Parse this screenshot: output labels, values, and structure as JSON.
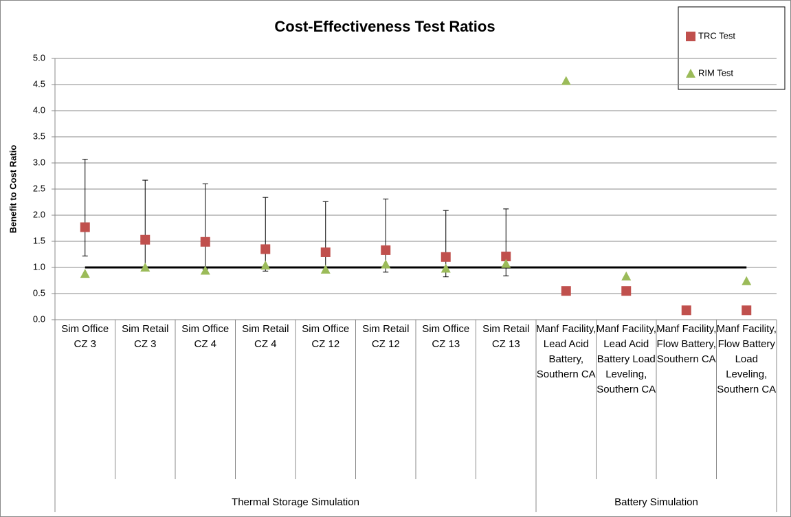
{
  "chart_data": {
    "type": "scatter",
    "title": "Cost-Effectiveness Test Ratios",
    "y_label": "Benefit to Cost Ratio",
    "categories": [
      "Sim Office CZ 3",
      "Sim Retail CZ 3",
      "Sim Office CZ 4",
      "Sim Retail CZ 4",
      "Sim Office CZ 12",
      "Sim Retail CZ 12",
      "Sim Office CZ 13",
      "Sim Retail CZ 13",
      "Manf Facility, Lead Acid Battery, Southern CA",
      "Manf Facility, Lead Acid Battery Load Leveling, Southern CA",
      "Manf Facility, Flow Battery, Southern CA",
      "Manf Facility, Flow Battery Load Leveling, Southern CA"
    ],
    "groups": [
      {
        "name": "Thermal Storage Simulation",
        "start": 0,
        "end": 7
      },
      {
        "name": "Battery Simulation",
        "start": 8,
        "end": 11
      }
    ],
    "series": [
      {
        "name": "TRC Test",
        "color": "#c0504d",
        "marker": "square",
        "values": [
          1.77,
          1.53,
          1.49,
          1.35,
          1.29,
          1.33,
          1.2,
          1.21,
          0.55,
          0.55,
          0.18,
          0.18
        ],
        "error_plus": [
          1.3,
          1.14,
          1.11,
          0.99,
          0.97,
          0.98,
          0.89,
          0.91,
          null,
          null,
          null,
          null
        ],
        "error_minus": [
          0.55,
          0.53,
          0.52,
          0.42,
          0.34,
          0.42,
          0.38,
          0.37,
          null,
          null,
          null,
          null
        ]
      },
      {
        "name": "RIM Test",
        "color": "#9bbb59",
        "marker": "triangle",
        "values": [
          0.88,
          1.0,
          0.94,
          1.04,
          0.96,
          1.06,
          0.98,
          1.07,
          4.57,
          0.83,
          null,
          0.74
        ]
      }
    ],
    "reference_line": 1.0,
    "ylim": [
      0,
      5
    ],
    "yticks": [
      {
        "value": 0,
        "label": "0.0"
      },
      {
        "value": 0.5,
        "label": "0.5"
      },
      {
        "value": 1,
        "label": "1.0"
      },
      {
        "value": 1.5,
        "label": "1.5"
      },
      {
        "value": 2,
        "label": "2.0"
      },
      {
        "value": 2.5,
        "label": "2.5"
      },
      {
        "value": 3,
        "label": "3.0"
      },
      {
        "value": 3.5,
        "label": "3.5"
      },
      {
        "value": 4,
        "label": "4.0"
      },
      {
        "value": 4.5,
        "label": "4.5"
      },
      {
        "value": 5,
        "label": "5.0"
      }
    ],
    "grid": true,
    "legend": "top-right"
  }
}
